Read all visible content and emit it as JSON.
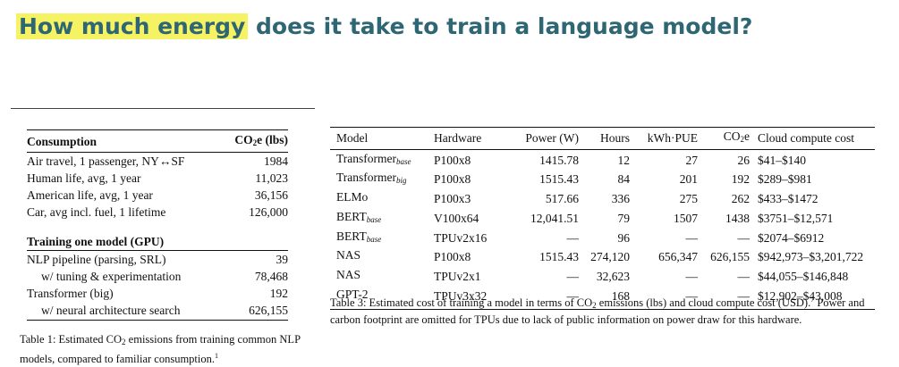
{
  "title": {
    "highlight": "How much energy",
    "rest": " does it take to train a language model?"
  },
  "colors": {
    "title": "#2f6673",
    "highlight": "#f5f264"
  },
  "table1": {
    "header": {
      "consumption": "Consumption",
      "co2_prefix": "CO",
      "co2_sub": "2",
      "co2_suffix": "e (lbs)"
    },
    "rows": [
      {
        "label": "Air travel, 1 passenger, NY↔SF",
        "value": "1984"
      },
      {
        "label": "Human life, avg, 1 year",
        "value": "11,023"
      },
      {
        "label": "American life, avg, 1 year",
        "value": "36,156"
      },
      {
        "label": "Car, avg incl. fuel, 1 lifetime",
        "value": "126,000"
      }
    ],
    "section_title": "Training one model (GPU)",
    "training_rows": [
      {
        "label": "NLP pipeline (parsing, SRL)",
        "value": "39"
      },
      {
        "label": "w/ tuning & experimentation",
        "value": "78,468"
      },
      {
        "label": "Transformer (big)",
        "value": "192"
      },
      {
        "label": "w/ neural architecture search",
        "value": "626,155"
      }
    ],
    "caption": {
      "prefix": "Table 1: Estimated CO",
      "sub": "2",
      "suffix": " emissions from training common NLP models, compared to familiar consumption.",
      "footnote": "1"
    }
  },
  "table3": {
    "headers": {
      "model": "Model",
      "hardware": "Hardware",
      "power": "Power (W)",
      "hours": "Hours",
      "kwh": "kWh·PUE",
      "co2_prefix": "CO",
      "co2_sub": "2",
      "co2_suffix": "e",
      "cost": "Cloud compute cost"
    },
    "rows": [
      {
        "model": "Transformer",
        "model_sub": "base",
        "hardware": "P100x8",
        "power": "1415.78",
        "hours": "12",
        "kwh": "27",
        "co2": "26",
        "cost": "$41–$140"
      },
      {
        "model": "Transformer",
        "model_sub": "big",
        "hardware": "P100x8",
        "power": "1515.43",
        "hours": "84",
        "kwh": "201",
        "co2": "192",
        "cost": "$289–$981"
      },
      {
        "model": "ELMo",
        "model_sub": "",
        "hardware": "P100x3",
        "power": "517.66",
        "hours": "336",
        "kwh": "275",
        "co2": "262",
        "cost": "$433–$1472"
      },
      {
        "model": "BERT",
        "model_sub": "base",
        "hardware": "V100x64",
        "power": "12,041.51",
        "hours": "79",
        "kwh": "1507",
        "co2": "1438",
        "cost": "$3751–$12,571"
      },
      {
        "model": "BERT",
        "model_sub": "base",
        "hardware": "TPUv2x16",
        "power": "—",
        "hours": "96",
        "kwh": "—",
        "co2": "—",
        "cost": "$2074–$6912"
      },
      {
        "model": "NAS",
        "model_sub": "",
        "hardware": "P100x8",
        "power": "1515.43",
        "hours": "274,120",
        "kwh": "656,347",
        "co2": "626,155",
        "cost": "$942,973–$3,201,722"
      },
      {
        "model": "NAS",
        "model_sub": "",
        "hardware": "TPUv2x1",
        "power": "—",
        "hours": "32,623",
        "kwh": "—",
        "co2": "—",
        "cost": "$44,055–$146,848"
      },
      {
        "model": "GPT-2",
        "model_sub": "",
        "hardware": "TPUv3x32",
        "power": "—",
        "hours": "168",
        "kwh": "—",
        "co2": "—",
        "cost": "$12,902–$43,008"
      }
    ],
    "caption": {
      "prefix": "Table 3: Estimated cost of training a model in terms of CO",
      "sub": "2",
      "middle": " emissions (lbs) and cloud compute cost (USD).",
      "footnote": "7",
      "suffix": " Power and carbon footprint are omitted for TPUs due to lack of public information on power draw for this hardware."
    }
  }
}
